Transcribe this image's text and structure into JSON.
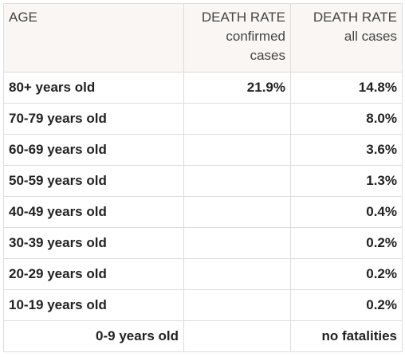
{
  "table": {
    "headers": {
      "age": "AGE",
      "confirmed_line1": "DEATH RATE",
      "confirmed_line2": "confirmed",
      "confirmed_line3": "cases",
      "all_line1": "DEATH RATE",
      "all_line2": "all cases"
    },
    "rows": [
      {
        "age": "80+ years old",
        "confirmed": "21.9%",
        "all": "14.8%"
      },
      {
        "age": "70-79 years old",
        "confirmed": "",
        "all": "8.0%"
      },
      {
        "age": "60-69 years old",
        "confirmed": "",
        "all": "3.6%"
      },
      {
        "age": "50-59 years old",
        "confirmed": "",
        "all": "1.3%"
      },
      {
        "age": "40-49 years old",
        "confirmed": "",
        "all": "0.4%"
      },
      {
        "age": "30-39 years old",
        "confirmed": "",
        "all": "0.2%"
      },
      {
        "age": "20-29 years old",
        "confirmed": "",
        "all": "0.2%"
      },
      {
        "age": "10-19 years old",
        "confirmed": "",
        "all": "0.2%"
      },
      {
        "age": "0-9 years old",
        "confirmed": "",
        "all": "no fatalities"
      }
    ]
  }
}
